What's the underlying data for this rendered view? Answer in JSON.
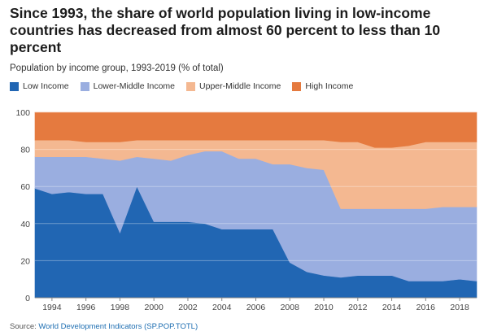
{
  "title": "Since 1993, the share of world population living in low-income countries has decreased from almost 60 percent to less than 10 percent",
  "subtitle": "Population by income group, 1993-2019 (% of total)",
  "source_label": "Source:",
  "source_link": "World Development Indicators (SP.POP.TOTL)",
  "chart_data": {
    "type": "area",
    "stacked": true,
    "x": [
      1993,
      1994,
      1995,
      1996,
      1997,
      1998,
      1999,
      2000,
      2001,
      2002,
      2003,
      2004,
      2005,
      2006,
      2007,
      2008,
      2009,
      2010,
      2011,
      2012,
      2013,
      2014,
      2015,
      2016,
      2017,
      2018,
      2019
    ],
    "x_ticks": [
      1994,
      1996,
      1998,
      2000,
      2002,
      2004,
      2006,
      2008,
      2010,
      2012,
      2014,
      2016,
      2018
    ],
    "ylim": [
      0,
      100
    ],
    "y_ticks": [
      0,
      20,
      40,
      60,
      80,
      100
    ],
    "grid": true,
    "legend_position": "top-left",
    "series": [
      {
        "name": "Low Income",
        "color": "#2166b3",
        "values": [
          59,
          56,
          57,
          56,
          56,
          35,
          60,
          41,
          41,
          41,
          40,
          37,
          37,
          37,
          37,
          19,
          14,
          12,
          11,
          12,
          12,
          12,
          9,
          9,
          9,
          10,
          9
        ]
      },
      {
        "name": "Lower-Middle Income",
        "color": "#9aaee0",
        "values": [
          17,
          20,
          19,
          20,
          19,
          39,
          16,
          34,
          33,
          36,
          39,
          42,
          38,
          38,
          35,
          53,
          56,
          57,
          37,
          36,
          36,
          36,
          39,
          39,
          40,
          39,
          40
        ]
      },
      {
        "name": "Upper-Middle Income",
        "color": "#f4b891",
        "values": [
          9,
          9,
          9,
          8,
          9,
          10,
          9,
          10,
          11,
          8,
          6,
          6,
          10,
          10,
          13,
          13,
          15,
          16,
          36,
          36,
          33,
          33,
          34,
          36,
          35,
          35,
          35
        ]
      },
      {
        "name": "High Income",
        "color": "#e57a3f",
        "values": [
          15,
          15,
          15,
          16,
          16,
          16,
          15,
          15,
          15,
          15,
          15,
          15,
          15,
          15,
          15,
          15,
          15,
          15,
          16,
          16,
          19,
          19,
          18,
          16,
          16,
          16,
          16
        ]
      }
    ]
  }
}
